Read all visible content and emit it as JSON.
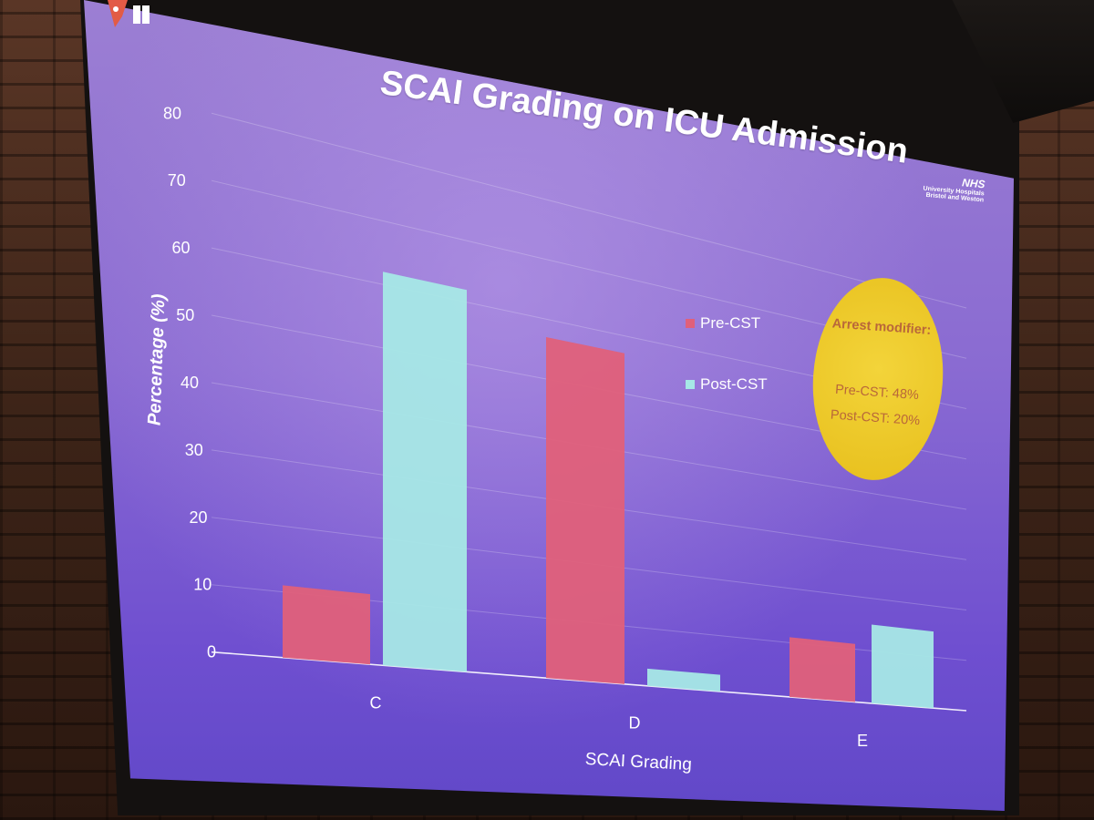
{
  "slide": {
    "title": "SCAI Grading on ICU Admission",
    "nhs_logo": {
      "brand": "NHS",
      "line1": "University Hospitals",
      "line2": "Bristol and Weston"
    }
  },
  "badge": {
    "title": "Arrest modifier:",
    "line1": "Pre-CST: 48%",
    "line2": "Post-CST: 20%",
    "color": "#EBC525"
  },
  "chart_data": {
    "type": "bar",
    "title": "SCAI Grading on ICU Admission",
    "xlabel": "SCAI Grading",
    "ylabel": "Percentage (%)",
    "categories": [
      "C",
      "D",
      "E"
    ],
    "ylim": [
      0,
      80
    ],
    "yticks": [
      0,
      10,
      20,
      30,
      40,
      50,
      60,
      70,
      80
    ],
    "grid": true,
    "legend_position": "right",
    "series": [
      {
        "name": "Pre-CST",
        "values": [
          11,
          57,
          11
        ],
        "color": "#E0607A"
      },
      {
        "name": "Post-CST",
        "values": [
          62,
          3,
          15
        ],
        "color": "#A6E8E6"
      }
    ]
  }
}
